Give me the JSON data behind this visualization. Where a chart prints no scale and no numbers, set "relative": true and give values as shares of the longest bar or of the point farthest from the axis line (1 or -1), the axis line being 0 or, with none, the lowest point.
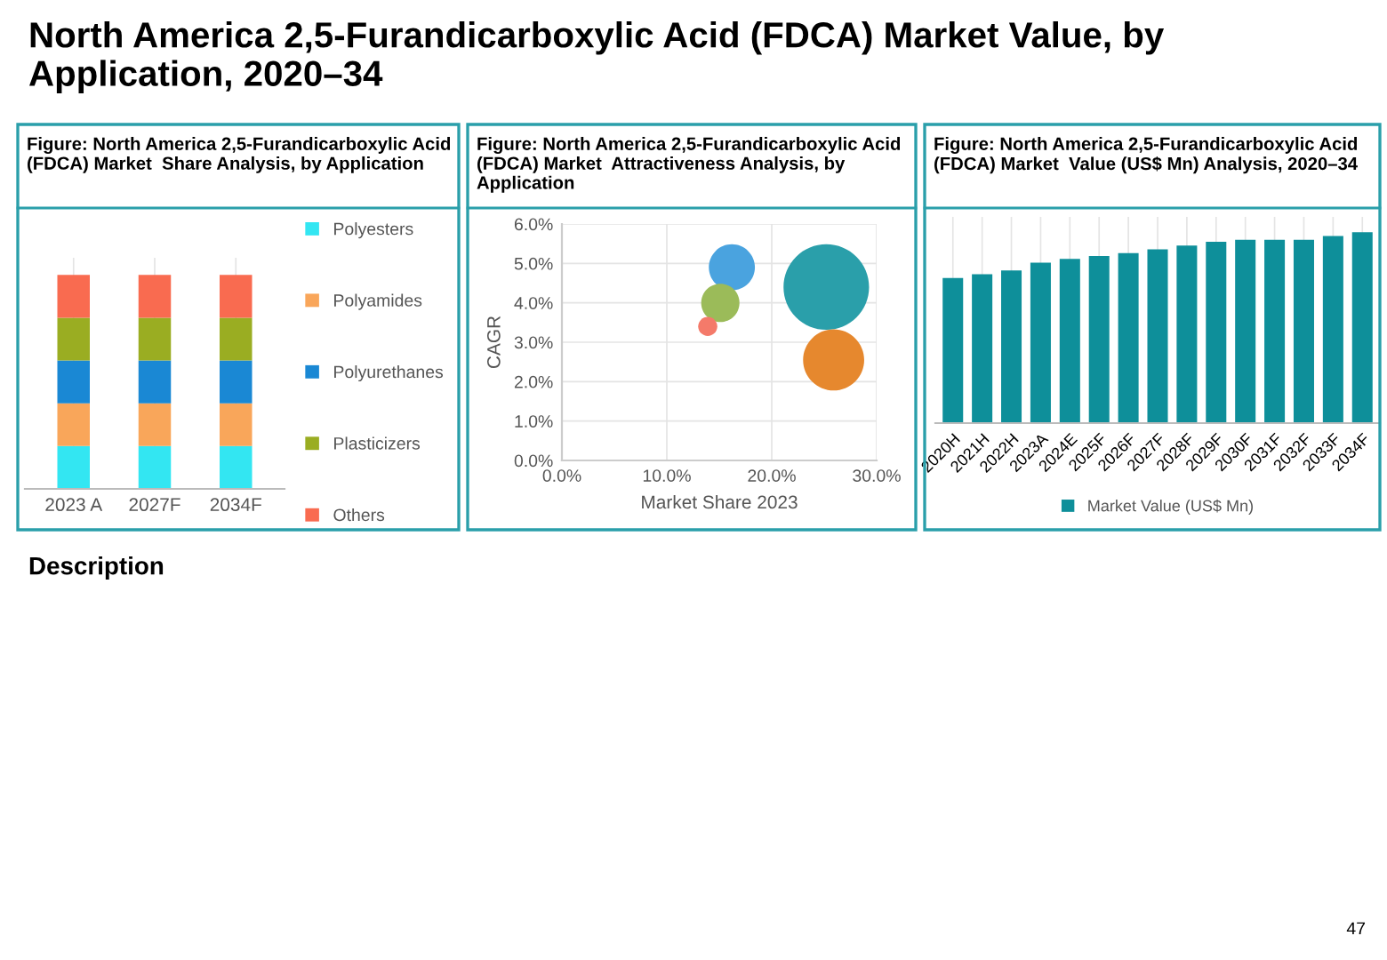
{
  "chart_data": [
    {
      "type": "bar",
      "title": "Figure: North America 2,5-Furandicarboxylic Acid\n(FDCA) Market  Share Analysis, by Application",
      "annotations": [
        "North America 2,5-Furandicarboxylic Acid (FDCA) Market Value, by\nApplication, 2020–34",
        "Description",
        "47"
      ],
      "categories": [
        "2023 A",
        "2027F",
        "2034F"
      ],
      "stacked": true,
      "relative": true,
      "grid": true,
      "legend": "right",
      "series": [
        {
          "name": "Polyesters",
          "color": "#33e6f2",
          "values": [
            0.2,
            0.2,
            0.2
          ]
        },
        {
          "name": "Polyamides",
          "color": "#f9a65a",
          "values": [
            0.2,
            0.2,
            0.2
          ]
        },
        {
          "name": "Polyurethanes",
          "color": "#1a88d4",
          "values": [
            0.2,
            0.2,
            0.2
          ]
        },
        {
          "name": "Plasticizers",
          "color": "#9aad22",
          "values": [
            0.2,
            0.2,
            0.2
          ]
        },
        {
          "name": "Others",
          "color": "#f96b50",
          "values": [
            0.2,
            0.2,
            0.2
          ]
        }
      ]
    },
    {
      "type": "bubble",
      "title": "Figure: North America 2,5-Furandicarboxylic Acid\n(FDCA) Market  Attractiveness Analysis, by\nApplication",
      "xlabel": "Market Share 2023",
      "ylabel": "CAGR",
      "grid": true,
      "xlim": [
        0,
        30
      ],
      "xticks": [
        {
          "value": 0,
          "label": "0.0%"
        },
        {
          "value": 10,
          "label": "10.0%"
        },
        {
          "value": 20,
          "label": "20.0%"
        },
        {
          "value": 30,
          "label": "30.0%"
        }
      ],
      "ylim": [
        0,
        6
      ],
      "yticks": [
        {
          "value": 0,
          "label": "0.0%"
        },
        {
          "value": 1,
          "label": "1.0%"
        },
        {
          "value": 2,
          "label": "2.0%"
        },
        {
          "value": 3,
          "label": "3.0%"
        },
        {
          "value": 4,
          "label": "4.0%"
        },
        {
          "value": 5,
          "label": "5.0%"
        },
        {
          "value": 6,
          "label": "6.0%"
        }
      ],
      "x": [
        16.2,
        25.2,
        15.1,
        13.9,
        25.9
      ],
      "values": [
        4.9,
        4.4,
        4.0,
        3.4,
        2.55
      ],
      "sizes": [
        0.29,
        1,
        0.2,
        0.05,
        0.51
      ],
      "colors": [
        "#4aa3df",
        "#2a9faa",
        "#9bbb59",
        "#f47a6a",
        "#e6882e"
      ]
    },
    {
      "type": "bar",
      "title": "Figure: North America 2,5-Furandicarboxylic Acid\n(FDCA) Market  Value (US$ Mn) Analysis, 2020–34",
      "relative": true,
      "grid": true,
      "legend": "bottom",
      "categories": [
        "2020H",
        "2021H",
        "2022H",
        "2023A",
        "2024E",
        "2025F",
        "2026F",
        "2027F",
        "2028F",
        "2029F",
        "2030F",
        "2031F",
        "2032F",
        "2033F",
        "2034F"
      ],
      "series": [
        {
          "name": "Market Value (US$ Mn)",
          "color": "#0e8f9a",
          "values": [
            0.76,
            0.78,
            0.8,
            0.84,
            0.86,
            0.875,
            0.89,
            0.91,
            0.93,
            0.95,
            0.96,
            0.96,
            0.96,
            0.98,
            1
          ]
        }
      ]
    }
  ]
}
